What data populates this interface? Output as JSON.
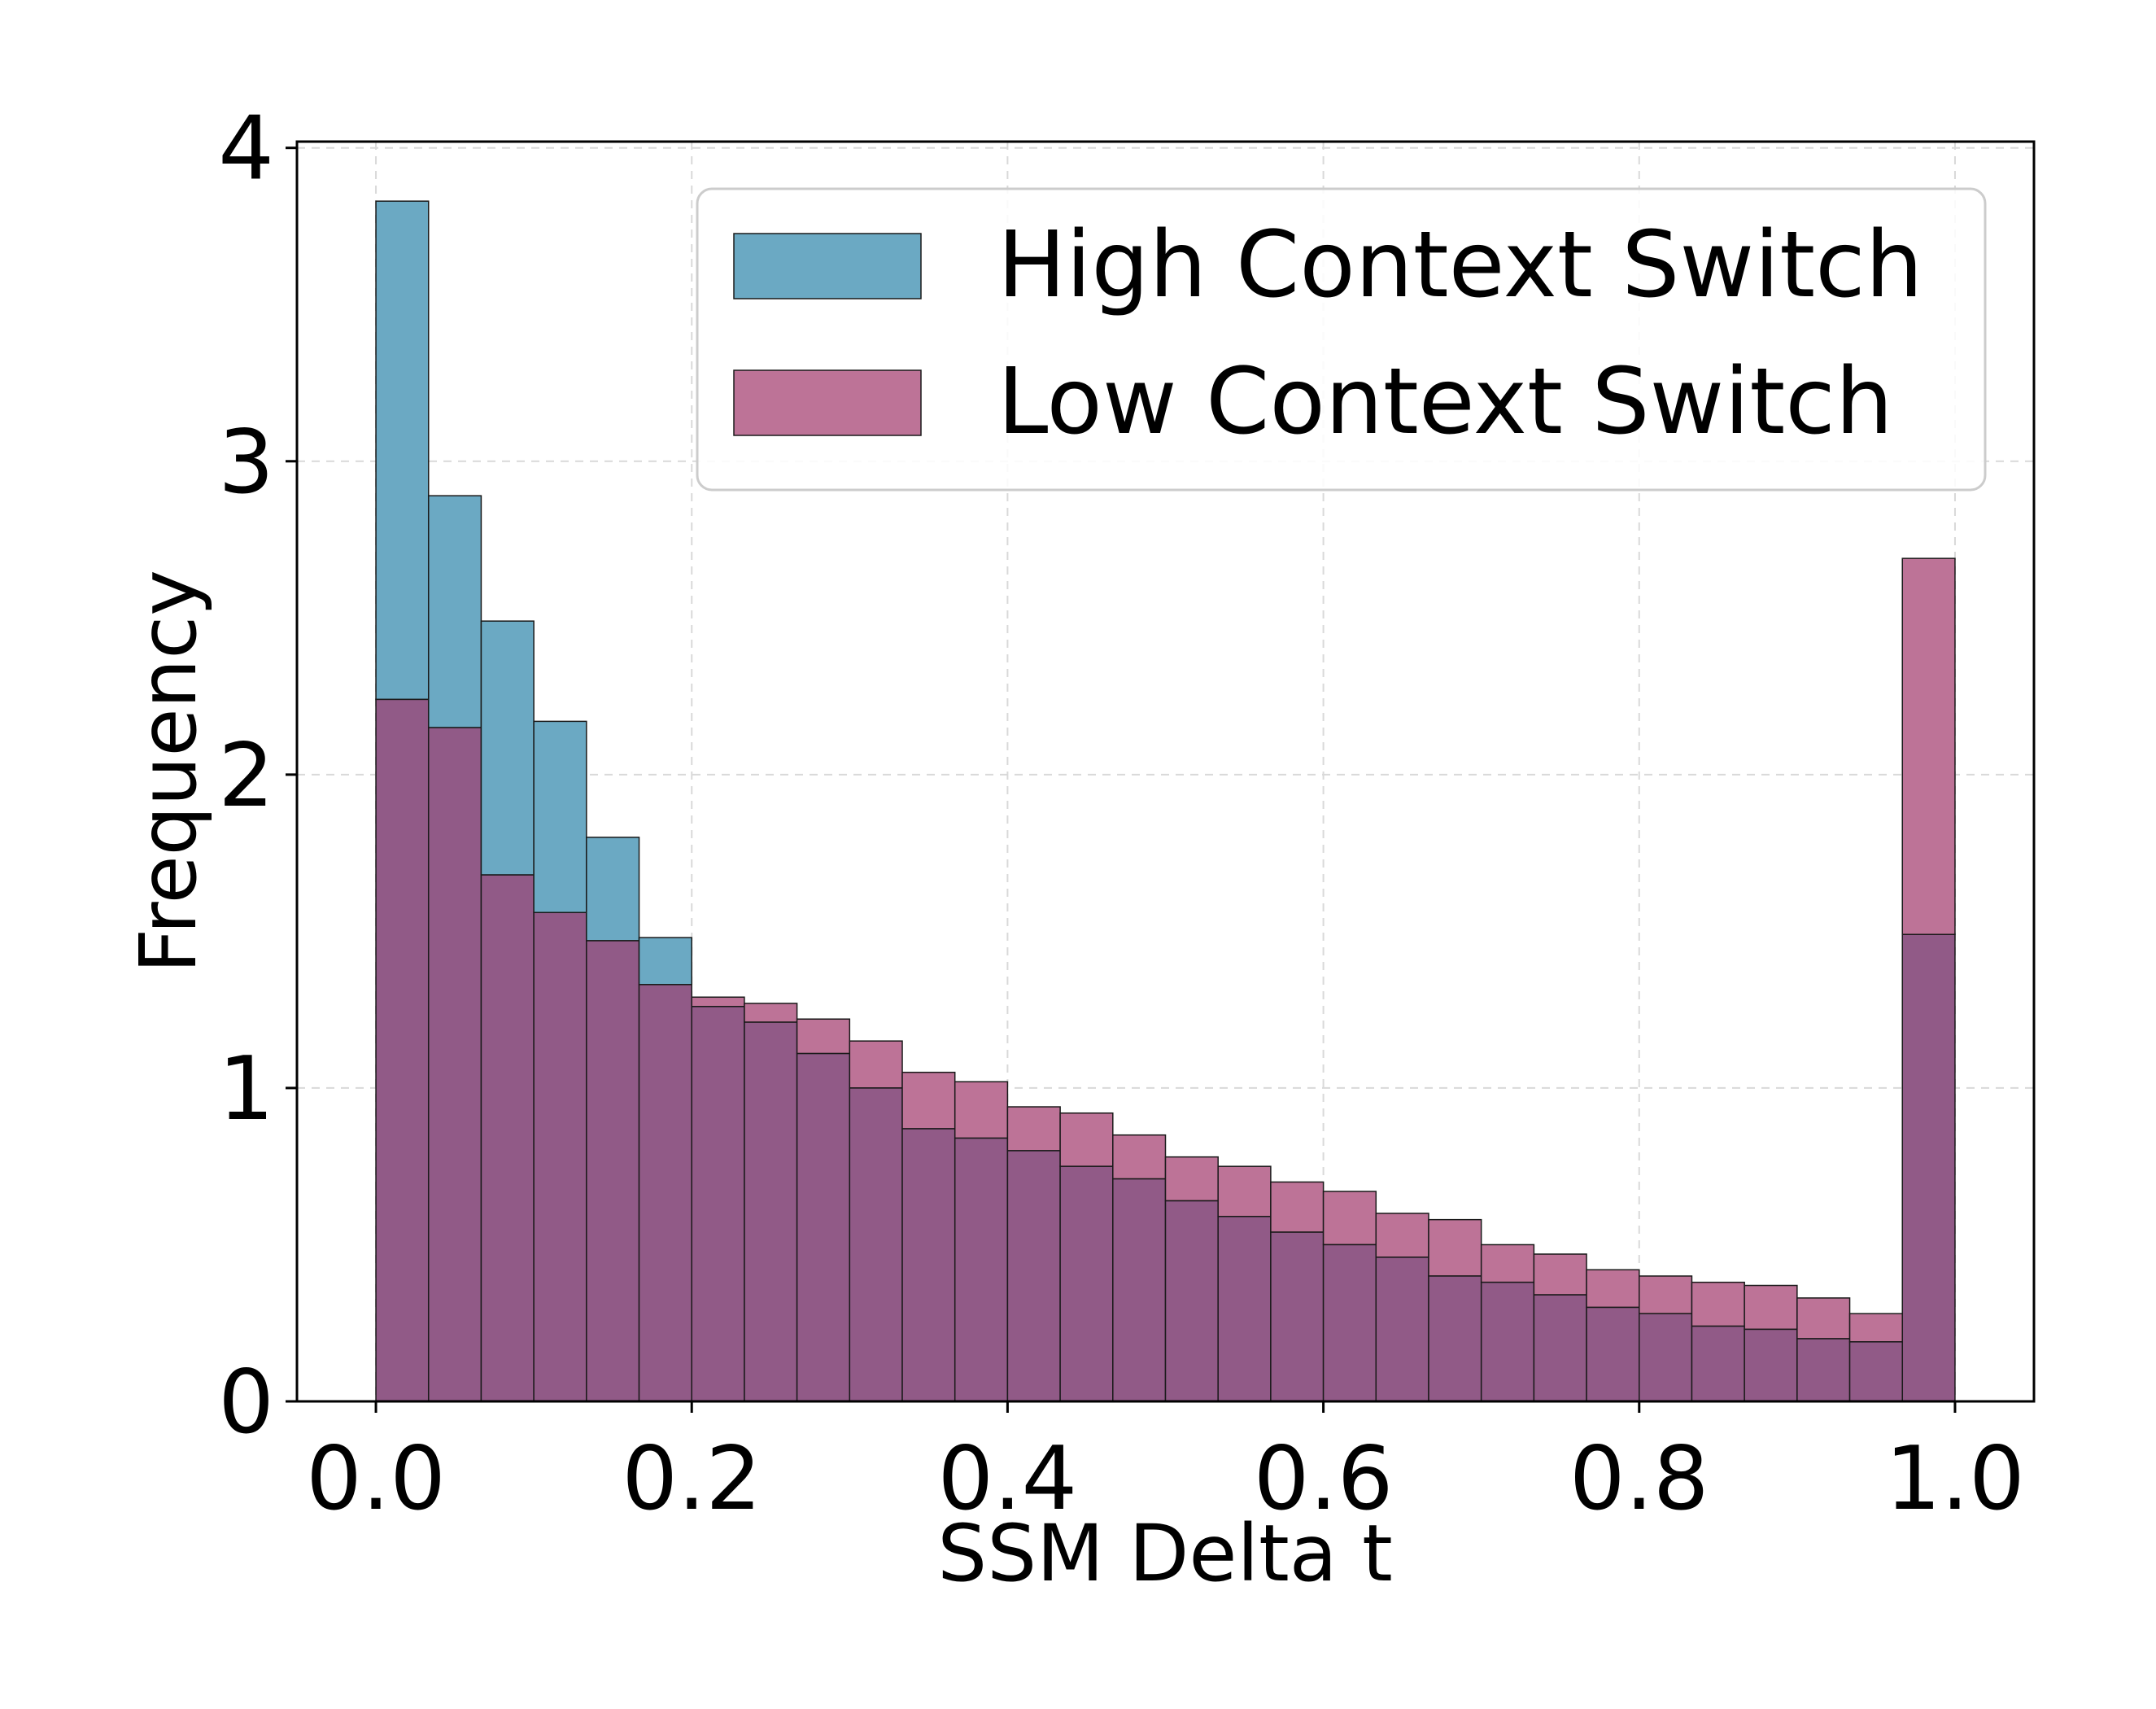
{
  "chart_data": {
    "type": "histogram",
    "title": "",
    "xlabel": "SSM Delta t",
    "ylabel": "Frequency",
    "xlim": [
      -0.05,
      1.05
    ],
    "ylim": [
      0,
      4.02
    ],
    "x_ticks": [
      "0.0",
      "0.2",
      "0.4",
      "0.6",
      "0.8",
      "1.0"
    ],
    "x_tick_values": [
      0.0,
      0.2,
      0.4,
      0.6,
      0.8,
      1.0
    ],
    "y_ticks": [
      "0",
      "1",
      "2",
      "3",
      "4"
    ],
    "y_tick_values": [
      0,
      1,
      2,
      3,
      4
    ],
    "grid": true,
    "legend_position": "top-right",
    "bin_edges_range": [
      0.0,
      1.0
    ],
    "bin_count": 30,
    "series": [
      {
        "name": "High Context Switch",
        "color": "#6ba9c3",
        "values": [
          3.83,
          2.89,
          2.49,
          2.17,
          1.8,
          1.48,
          1.26,
          1.21,
          1.11,
          1.0,
          0.87,
          0.84,
          0.8,
          0.75,
          0.71,
          0.64,
          0.59,
          0.54,
          0.5,
          0.46,
          0.4,
          0.38,
          0.34,
          0.3,
          0.28,
          0.24,
          0.23,
          0.2,
          0.19,
          1.49
        ]
      },
      {
        "name": "Low Context Switch",
        "color": "#bd7397",
        "values": [
          2.24,
          2.15,
          1.68,
          1.56,
          1.47,
          1.33,
          1.29,
          1.27,
          1.22,
          1.15,
          1.05,
          1.02,
          0.94,
          0.92,
          0.85,
          0.78,
          0.75,
          0.7,
          0.67,
          0.6,
          0.58,
          0.5,
          0.47,
          0.42,
          0.4,
          0.38,
          0.37,
          0.33,
          0.28,
          2.69
        ]
      }
    ],
    "overlap_color": "#915a87"
  }
}
